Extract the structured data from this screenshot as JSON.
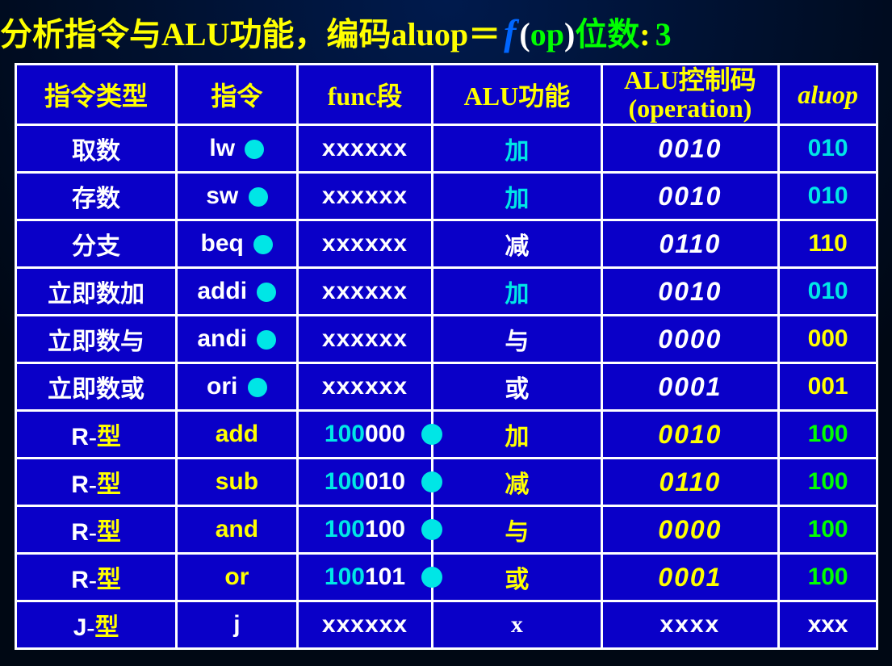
{
  "title": {
    "p1": {
      "text": "分析指令与",
      "color": "#ffff00"
    },
    "p2": {
      "text": "ALU",
      "color": "#ffff00",
      "family": "Times New Roman"
    },
    "p3": {
      "text": "功能，编码",
      "color": "#ffff00"
    },
    "p4": {
      "text": "aluop",
      "color": "#ffff00",
      "family": "Times New Roman"
    },
    "p5": {
      "text": "＝",
      "color": "#ffff00"
    },
    "p6": {
      "text": "f",
      "color": "#0066ff",
      "italic": true,
      "family": "Times New Roman",
      "size": 46
    },
    "p7": {
      "text": " (",
      "color": "#ffffff",
      "family": "Times New Roman"
    },
    "p8": {
      "text": "op",
      "color": "#00ff00",
      "family": "Times New Roman"
    },
    "p9": {
      "text": ") ",
      "color": "#ffffff",
      "family": "Times New Roman"
    },
    "p10": {
      "text": "位数",
      "color": "#00ff00"
    },
    "p11": {
      "text": ": ",
      "color": "#ffff00"
    },
    "p12": {
      "text": "3",
      "color": "#00ff00",
      "family": "Times New Roman"
    }
  },
  "headers": {
    "type": "指令类型",
    "instr": "指令",
    "func": "func段",
    "alufn": "ALU功能",
    "opcode_l1": "ALU控制码",
    "opcode_l2": "(operation)",
    "aluop": "aluop"
  },
  "rows": [
    {
      "type": "取数",
      "type_color": "#ffffff",
      "type_style": "cn",
      "instr": "lw",
      "instr_color": "#ffffff",
      "instr_dot": true,
      "func_prefix": "",
      "func_suffix": "xxxxxx",
      "func_dot": false,
      "alufn": "加",
      "alufn_color": "#00e6e6",
      "opcode": "0010",
      "opcode_class": "opcode-white",
      "aluop": "010",
      "aluop_color": "#00e6e6"
    },
    {
      "type": "存数",
      "type_color": "#ffffff",
      "type_style": "cn",
      "instr": "sw",
      "instr_color": "#ffffff",
      "instr_dot": true,
      "func_prefix": "",
      "func_suffix": "xxxxxx",
      "func_dot": false,
      "alufn": "加",
      "alufn_color": "#00e6e6",
      "opcode": "0010",
      "opcode_class": "opcode-white",
      "aluop": "010",
      "aluop_color": "#00e6e6"
    },
    {
      "type": "分支",
      "type_color": "#ffffff",
      "type_style": "cn",
      "instr": "beq",
      "instr_color": "#ffffff",
      "instr_dot": true,
      "func_prefix": "",
      "func_suffix": "xxxxxx",
      "func_dot": false,
      "alufn": "减",
      "alufn_color": "#ffffff",
      "opcode": "0110",
      "opcode_class": "opcode-white",
      "aluop": "110",
      "aluop_color": "#ffff00"
    },
    {
      "type": "立即数加",
      "type_color": "#ffffff",
      "type_style": "cn",
      "instr": "addi",
      "instr_color": "#ffffff",
      "instr_dot": true,
      "func_prefix": "",
      "func_suffix": "xxxxxx",
      "func_dot": false,
      "alufn": "加",
      "alufn_color": "#00e6e6",
      "opcode": "0010",
      "opcode_class": "opcode-white",
      "aluop": "010",
      "aluop_color": "#00e6e6"
    },
    {
      "type": "立即数与",
      "type_color": "#ffffff",
      "type_style": "cn",
      "instr": "andi",
      "instr_color": "#ffffff",
      "instr_dot": true,
      "func_prefix": "",
      "func_suffix": "xxxxxx",
      "func_dot": false,
      "alufn": "与",
      "alufn_color": "#ffffff",
      "opcode": "0000",
      "opcode_class": "opcode-white",
      "aluop": "000",
      "aluop_color": "#ffff00"
    },
    {
      "type": "立即数或",
      "type_color": "#ffffff",
      "type_style": "cn",
      "instr": "ori",
      "instr_color": "#ffffff",
      "instr_dot": true,
      "func_prefix": "",
      "func_suffix": "xxxxxx",
      "func_dot": false,
      "alufn": "或",
      "alufn_color": "#ffffff",
      "opcode": "0001",
      "opcode_class": "opcode-white",
      "aluop": "001",
      "aluop_color": "#ffff00"
    },
    {
      "type": "R-型",
      "type_color": "",
      "type_style": "rtype",
      "instr": "add",
      "instr_color": "#ffff00",
      "instr_dot": false,
      "func_prefix": "100",
      "func_suffix": "000",
      "func_dot": true,
      "alufn": "加",
      "alufn_color": "#ffff00",
      "opcode": "0010",
      "opcode_class": "opcode-yellow",
      "aluop": "100",
      "aluop_color": "#00ff00"
    },
    {
      "type": "R-型",
      "type_color": "",
      "type_style": "rtype",
      "instr": "sub",
      "instr_color": "#ffff00",
      "instr_dot": false,
      "func_prefix": "100",
      "func_suffix": "010",
      "func_dot": true,
      "alufn": "减",
      "alufn_color": "#ffff00",
      "opcode": "0110",
      "opcode_class": "opcode-yellow",
      "aluop": "100",
      "aluop_color": "#00ff00"
    },
    {
      "type": "R-型",
      "type_color": "",
      "type_style": "rtype",
      "instr": "and",
      "instr_color": "#ffff00",
      "instr_dot": false,
      "func_prefix": "100",
      "func_suffix": "100",
      "func_dot": true,
      "alufn": "与",
      "alufn_color": "#ffff00",
      "opcode": "0000",
      "opcode_class": "opcode-yellow",
      "aluop": "100",
      "aluop_color": "#00ff00"
    },
    {
      "type": "R-型",
      "type_color": "",
      "type_style": "rtype",
      "instr": "or",
      "instr_color": "#ffff00",
      "instr_dot": false,
      "func_prefix": "100",
      "func_suffix": "101",
      "func_dot": true,
      "alufn": "或",
      "alufn_color": "#ffff00",
      "opcode": "0001",
      "opcode_class": "opcode-yellow",
      "aluop": "100",
      "aluop_color": "#00ff00"
    },
    {
      "type": "J-型",
      "type_color": "",
      "type_style": "jtype",
      "instr": "j",
      "instr_color": "#ffffff",
      "instr_dot": false,
      "func_prefix": "",
      "func_suffix": "xxxxxx",
      "func_dot": false,
      "alufn": "x",
      "alufn_color": "#ffffff",
      "opcode": "xxxx",
      "opcode_class": "opcode-xxxx",
      "aluop": "xxx",
      "aluop_color": "#ffffff"
    }
  ]
}
